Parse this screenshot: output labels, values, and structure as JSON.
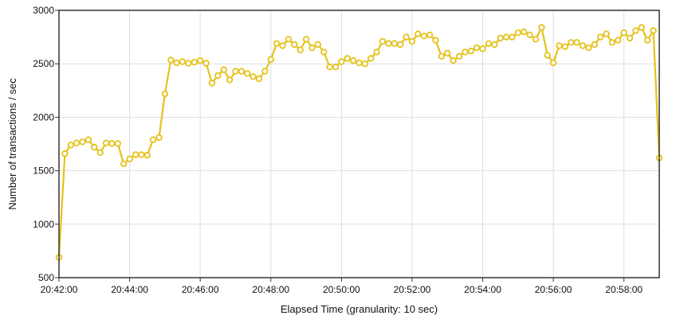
{
  "colors": {
    "series": "#e5c21c",
    "marker_fill": "#ffffff",
    "grid": "#dddddd",
    "frame": "#333333"
  },
  "chart_data": {
    "type": "line",
    "title": "",
    "xlabel": "Elapsed Time (granularity: 10 sec)",
    "ylabel": "Number of transactions / sec",
    "ylim": [
      500,
      3000
    ],
    "grid": true,
    "legend": "none",
    "y_ticks": [
      500,
      1000,
      1500,
      2000,
      2500,
      3000
    ],
    "x_tick_labels": [
      "20:42:00",
      "20:44:00",
      "20:46:00",
      "20:48:00",
      "20:50:00",
      "20:52:00",
      "20:54:00",
      "20:56:00",
      "20:58:00"
    ],
    "x_start": "20:42:00",
    "x_end": "20:59:00",
    "series": [
      {
        "x": [
          "20:42:00",
          "20:42:10",
          "20:42:20",
          "20:42:30",
          "20:42:40",
          "20:42:50",
          "20:43:00",
          "20:43:10",
          "20:43:20",
          "20:43:30",
          "20:43:40",
          "20:43:50",
          "20:44:00",
          "20:44:10",
          "20:44:20",
          "20:44:30",
          "20:44:40",
          "20:44:50",
          "20:45:00",
          "20:45:10",
          "20:45:20",
          "20:45:30",
          "20:45:40",
          "20:45:50",
          "20:46:00",
          "20:46:10",
          "20:46:20",
          "20:46:30",
          "20:46:40",
          "20:46:50",
          "20:47:00",
          "20:47:10",
          "20:47:20",
          "20:47:30",
          "20:47:40",
          "20:47:50",
          "20:48:00",
          "20:48:10",
          "20:48:20",
          "20:48:30",
          "20:48:40",
          "20:48:50",
          "20:49:00",
          "20:49:10",
          "20:49:20",
          "20:49:30",
          "20:49:40",
          "20:49:50",
          "20:50:00",
          "20:50:10",
          "20:50:20",
          "20:50:30",
          "20:50:40",
          "20:50:50",
          "20:51:00",
          "20:51:10",
          "20:51:20",
          "20:51:30",
          "20:51:40",
          "20:51:50",
          "20:52:00",
          "20:52:10",
          "20:52:20",
          "20:52:30",
          "20:52:40",
          "20:52:50",
          "20:53:00",
          "20:53:10",
          "20:53:20",
          "20:53:30",
          "20:53:40",
          "20:53:50",
          "20:54:00",
          "20:54:10",
          "20:54:20",
          "20:54:30",
          "20:54:40",
          "20:54:50",
          "20:55:00",
          "20:55:10",
          "20:55:20",
          "20:55:30",
          "20:55:40",
          "20:55:50",
          "20:56:00",
          "20:56:10",
          "20:56:20",
          "20:56:30",
          "20:56:40",
          "20:56:50",
          "20:57:00",
          "20:57:10",
          "20:57:20",
          "20:57:30",
          "20:57:40",
          "20:57:50",
          "20:58:00",
          "20:58:10",
          "20:58:20",
          "20:58:30",
          "20:58:40",
          "20:58:50",
          "20:59:00"
        ],
        "y": [
          690,
          1660,
          1740,
          1760,
          1770,
          1790,
          1720,
          1670,
          1760,
          1755,
          1755,
          1565,
          1610,
          1650,
          1650,
          1645,
          1790,
          1810,
          2220,
          2535,
          2510,
          2520,
          2505,
          2515,
          2530,
          2505,
          2320,
          2390,
          2445,
          2350,
          2430,
          2430,
          2410,
          2380,
          2360,
          2430,
          2540,
          2690,
          2670,
          2730,
          2680,
          2630,
          2730,
          2650,
          2680,
          2610,
          2470,
          2470,
          2520,
          2550,
          2530,
          2510,
          2500,
          2550,
          2610,
          2710,
          2690,
          2690,
          2680,
          2750,
          2710,
          2780,
          2760,
          2770,
          2720,
          2570,
          2600,
          2530,
          2570,
          2610,
          2620,
          2650,
          2640,
          2690,
          2680,
          2740,
          2750,
          2750,
          2790,
          2800,
          2770,
          2730,
          2840,
          2580,
          2510,
          2670,
          2660,
          2700,
          2700,
          2670,
          2650,
          2680,
          2750,
          2780,
          2700,
          2720,
          2790,
          2740,
          2810,
          2840,
          2720,
          2810,
          1620
        ]
      }
    ]
  }
}
